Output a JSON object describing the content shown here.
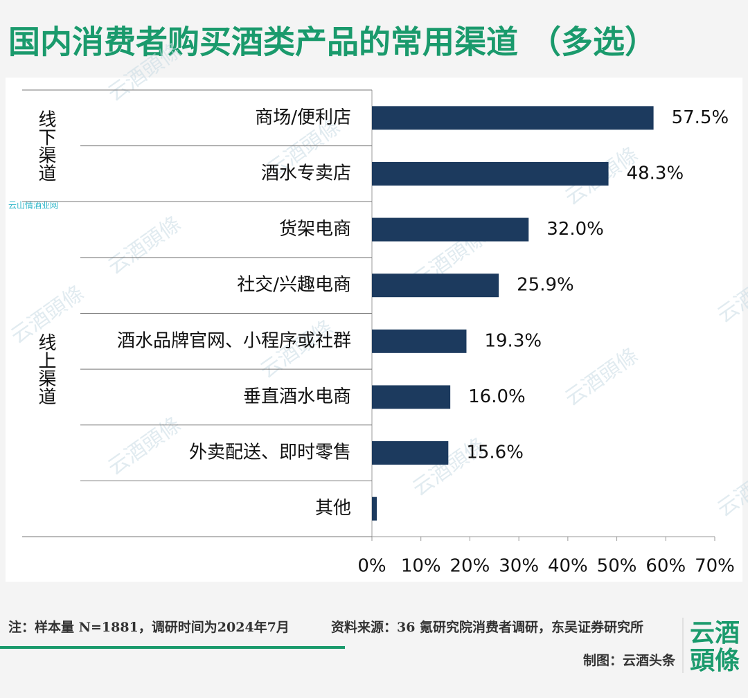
{
  "chart_data": {
    "type": "bar",
    "orientation": "horizontal",
    "title": "国内消费者购买酒类产品的常用渠道 （多选）",
    "categories": [
      "商场/便利店",
      "酒水专卖店",
      "货架电商",
      "社交/兴趣电商",
      "酒水品牌官网、小程序或社群",
      "垂直酒水电商",
      "外卖配送、即时零售",
      "其他"
    ],
    "values": [
      57.5,
      48.3,
      32.0,
      25.9,
      19.3,
      16.0,
      15.6,
      1.0
    ],
    "value_labels": [
      "57.5%",
      "48.3%",
      "32.0%",
      "25.9%",
      "19.3%",
      "16.0%",
      "15.6%",
      null
    ],
    "color": "#1c3a5e",
    "xlim": [
      0,
      70
    ],
    "xticks": [
      {
        "value": 0,
        "label": "0%"
      },
      {
        "value": 10,
        "label": "10%"
      },
      {
        "value": 20,
        "label": "20%"
      },
      {
        "value": 30,
        "label": "30%"
      },
      {
        "value": 40,
        "label": "40%"
      },
      {
        "value": 50,
        "label": "50%"
      },
      {
        "value": 60,
        "label": "60%"
      },
      {
        "value": 70,
        "label": "70%"
      }
    ],
    "grid": false,
    "groups": [
      {
        "name": "线下渠道",
        "members": [
          "商场/便利店",
          "酒水专卖店"
        ]
      },
      {
        "name": "线上渠道",
        "members": [
          "货架电商",
          "社交/兴趣电商",
          "酒水品牌官网、小程序或社群",
          "垂直酒水电商",
          "外卖配送、即时零售",
          "其他"
        ]
      }
    ]
  },
  "footer": {
    "note": "注：样本量 N=1881，调研时间为2024年7月",
    "source": "资料来源：36 氪研究院消费者调研，东吴证券研究所",
    "credit": "制图：云酒头条",
    "logo_top": "云酒",
    "logo_bottom": "頭條"
  },
  "watermark": "云酒頭條",
  "site_mark": "云山情酒业网"
}
